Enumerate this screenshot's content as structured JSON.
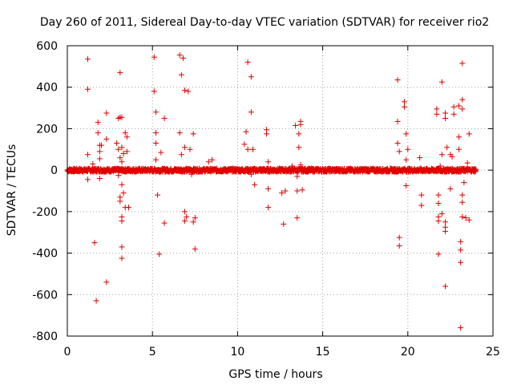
{
  "chart_data": {
    "type": "scatter",
    "title": "Day 260 of 2011, Sidereal Day-to-day VTEC variation (SDTVAR) for receiver rio2",
    "xlabel": "GPS time / hours",
    "ylabel": "SDTVAR / TECUs",
    "xlim": [
      0,
      25
    ],
    "ylim": [
      -800,
      600
    ],
    "xticks": [
      "0",
      "5",
      "10",
      "15",
      "20",
      "25"
    ],
    "yticks": [
      "600",
      "400",
      "200",
      "0",
      "-200",
      "-400",
      "-600",
      "-800"
    ],
    "grid": true,
    "marker": "+",
    "color": "#e00000",
    "band": {
      "x_start": 0.0,
      "x_end": 24.0,
      "y_half_width": 8,
      "points_per_hour": 60
    },
    "series": [
      {
        "name": "SDTVAR",
        "points": [
          [
            1.2,
            535
          ],
          [
            1.2,
            390
          ],
          [
            1.2,
            75
          ],
          [
            1.2,
            -45
          ],
          [
            1.5,
            30
          ],
          [
            1.6,
            -350
          ],
          [
            1.7,
            -630
          ],
          [
            1.8,
            230
          ],
          [
            1.8,
            180
          ],
          [
            1.9,
            120
          ],
          [
            1.9,
            90
          ],
          [
            1.9,
            55
          ],
          [
            1.9,
            -40
          ],
          [
            2.0,
            120
          ],
          [
            2.3,
            275
          ],
          [
            2.3,
            150
          ],
          [
            2.3,
            -540
          ],
          [
            2.9,
            130
          ],
          [
            3.0,
            250
          ],
          [
            3.0,
            100
          ],
          [
            3.0,
            -25
          ],
          [
            3.1,
            470
          ],
          [
            3.1,
            255
          ],
          [
            3.1,
            60
          ],
          [
            3.1,
            -130
          ],
          [
            3.1,
            -150
          ],
          [
            3.2,
            255
          ],
          [
            3.2,
            110
          ],
          [
            3.2,
            40
          ],
          [
            3.2,
            -70
          ],
          [
            3.2,
            -225
          ],
          [
            3.2,
            -245
          ],
          [
            3.2,
            -370
          ],
          [
            3.2,
            -425
          ],
          [
            3.3,
            80
          ],
          [
            3.3,
            -110
          ],
          [
            3.4,
            180
          ],
          [
            3.4,
            -180
          ],
          [
            3.5,
            160
          ],
          [
            3.5,
            90
          ],
          [
            3.6,
            -180
          ],
          [
            5.1,
            545
          ],
          [
            5.1,
            380
          ],
          [
            5.2,
            280
          ],
          [
            5.2,
            180
          ],
          [
            5.2,
            130
          ],
          [
            5.2,
            50
          ],
          [
            5.3,
            -120
          ],
          [
            5.4,
            -405
          ],
          [
            5.5,
            85
          ],
          [
            5.7,
            250
          ],
          [
            5.7,
            -255
          ],
          [
            5.8,
            5
          ],
          [
            6.6,
            555
          ],
          [
            6.6,
            180
          ],
          [
            6.7,
            460
          ],
          [
            6.7,
            75
          ],
          [
            6.8,
            540
          ],
          [
            6.9,
            385
          ],
          [
            6.9,
            110
          ],
          [
            6.9,
            -200
          ],
          [
            6.9,
            -245
          ],
          [
            7.0,
            -225
          ],
          [
            7.1,
            380
          ],
          [
            7.2,
            100
          ],
          [
            7.3,
            -20
          ],
          [
            7.4,
            175
          ],
          [
            7.4,
            -250
          ],
          [
            7.5,
            -230
          ],
          [
            7.5,
            -380
          ],
          [
            8.3,
            40
          ],
          [
            8.5,
            50
          ],
          [
            10.4,
            125
          ],
          [
            10.5,
            185
          ],
          [
            10.6,
            520
          ],
          [
            10.6,
            100
          ],
          [
            10.8,
            450
          ],
          [
            10.8,
            280
          ],
          [
            10.8,
            -20
          ],
          [
            10.9,
            100
          ],
          [
            11.0,
            -70
          ],
          [
            11.7,
            195
          ],
          [
            11.7,
            175
          ],
          [
            11.8,
            40
          ],
          [
            11.8,
            -90
          ],
          [
            11.8,
            -180
          ],
          [
            12.6,
            -110
          ],
          [
            12.7,
            -260
          ],
          [
            12.8,
            -100
          ],
          [
            13.2,
            20
          ],
          [
            13.4,
            215
          ],
          [
            13.5,
            -30
          ],
          [
            13.5,
            -100
          ],
          [
            13.5,
            -230
          ],
          [
            13.6,
            175
          ],
          [
            13.6,
            110
          ],
          [
            13.7,
            235
          ],
          [
            13.7,
            220
          ],
          [
            13.7,
            25
          ],
          [
            13.8,
            -95
          ],
          [
            19.4,
            435
          ],
          [
            19.4,
            235
          ],
          [
            19.4,
            130
          ],
          [
            19.5,
            90
          ],
          [
            19.5,
            -325
          ],
          [
            19.5,
            -365
          ],
          [
            19.8,
            330
          ],
          [
            19.8,
            305
          ],
          [
            19.9,
            175
          ],
          [
            19.9,
            50
          ],
          [
            19.9,
            -75
          ],
          [
            20.0,
            100
          ],
          [
            20.7,
            60
          ],
          [
            20.8,
            -120
          ],
          [
            20.8,
            -170
          ],
          [
            21.7,
            295
          ],
          [
            21.7,
            270
          ],
          [
            21.8,
            -120
          ],
          [
            21.8,
            -160
          ],
          [
            21.8,
            -225
          ],
          [
            21.8,
            -245
          ],
          [
            21.8,
            -405
          ],
          [
            21.9,
            20
          ],
          [
            22.0,
            425
          ],
          [
            22.0,
            75
          ],
          [
            22.0,
            -210
          ],
          [
            22.2,
            275
          ],
          [
            22.2,
            250
          ],
          [
            22.2,
            -250
          ],
          [
            22.2,
            -275
          ],
          [
            22.2,
            -295
          ],
          [
            22.2,
            -560
          ],
          [
            22.3,
            110
          ],
          [
            22.5,
            75
          ],
          [
            22.5,
            -90
          ],
          [
            22.6,
            65
          ],
          [
            22.7,
            305
          ],
          [
            22.7,
            270
          ],
          [
            23.0,
            310
          ],
          [
            23.0,
            160
          ],
          [
            23.0,
            100
          ],
          [
            23.1,
            -345
          ],
          [
            23.1,
            -385
          ],
          [
            23.1,
            -445
          ],
          [
            23.1,
            -760
          ],
          [
            23.2,
            515
          ],
          [
            23.2,
            340
          ],
          [
            23.2,
            295
          ],
          [
            23.2,
            -120
          ],
          [
            23.2,
            -155
          ],
          [
            23.2,
            -225
          ],
          [
            23.3,
            -60
          ],
          [
            23.4,
            -230
          ],
          [
            23.5,
            35
          ],
          [
            23.6,
            175
          ],
          [
            23.6,
            -240
          ]
        ]
      }
    ]
  }
}
